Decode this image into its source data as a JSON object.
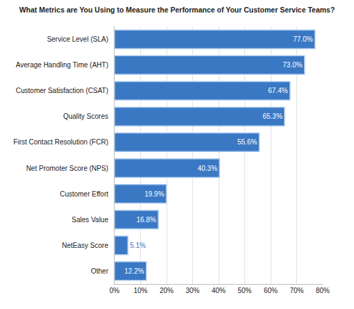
{
  "chart_data": {
    "type": "bar",
    "orientation": "horizontal",
    "title": "What Metrics are You Using to Measure the Performance of Your Customer Service Teams?",
    "categories": [
      "Service Level (SLA)",
      "Average Handling Time (AHT)",
      "Customer Satisfaction (CSAT)",
      "Quality Scores",
      "First Contact Resolution (FCR)",
      "Net Promoter Score (NPS)",
      "Customer Effort",
      "Sales Value",
      "NetEasy Score",
      "Other"
    ],
    "values": [
      77.0,
      73.0,
      67.4,
      65.3,
      55.6,
      40.3,
      19.9,
      16.8,
      5.1,
      12.2
    ],
    "value_labels": [
      "77.0%",
      "73.0%",
      "67.4%",
      "65.3%",
      "55.6%",
      "40.3%",
      "19.9%",
      "16.8%",
      "5.1%",
      "12.2%"
    ],
    "data_labels": true,
    "color": "#3a78c4",
    "xlim": [
      0,
      80
    ],
    "xticks": [
      {
        "value": 0,
        "label": "0%"
      },
      {
        "value": 10,
        "label": "10%"
      },
      {
        "value": 20,
        "label": "20%"
      },
      {
        "value": 30,
        "label": "30%"
      },
      {
        "value": 40,
        "label": "40%"
      },
      {
        "value": 50,
        "label": "50%"
      },
      {
        "value": 60,
        "label": "60%"
      },
      {
        "value": 70,
        "label": "70%"
      },
      {
        "value": 80,
        "label": "80%"
      }
    ],
    "grid": true
  }
}
